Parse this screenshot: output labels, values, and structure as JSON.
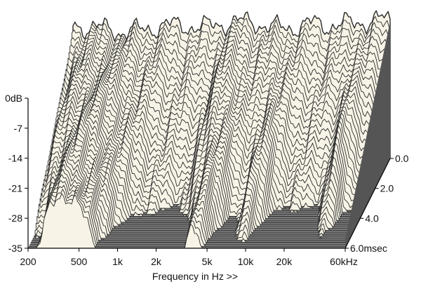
{
  "chart_data": {
    "type": "waterfall-3d",
    "xlabel": "Frequency in Hz >>",
    "x_ticks": [
      "200",
      "500",
      "1k",
      "2k",
      "5k",
      "10k",
      "20k",
      "60kHz"
    ],
    "x_tick_values": [
      200,
      500,
      1000,
      2000,
      5000,
      10000,
      20000,
      60000
    ],
    "x_scale": "log",
    "x_range": [
      200,
      60000
    ],
    "y_ticks": [
      "0dB",
      "-7",
      "-14",
      "-21",
      "-28",
      "-35"
    ],
    "y_tick_values": [
      0,
      -7,
      -14,
      -21,
      -28,
      -35
    ],
    "y_range": [
      -35,
      0
    ],
    "z_ticks": [
      "0.0",
      "2.0",
      "4.0",
      "6.0msec"
    ],
    "z_tick_values": [
      0.0,
      2.0,
      4.0,
      6.0
    ],
    "z_range": [
      0,
      6.0
    ],
    "slice_count": 45,
    "slice_spacing_msec": 0.133,
    "initial_response_db": [
      [
        200,
        -4
      ],
      [
        300,
        -4.5
      ],
      [
        400,
        -5
      ],
      [
        500,
        -5.5
      ],
      [
        700,
        -5
      ],
      [
        1000,
        -4
      ],
      [
        1500,
        -4
      ],
      [
        2000,
        -4.5
      ],
      [
        3000,
        -3.5
      ],
      [
        5000,
        -3
      ],
      [
        7000,
        -4.5
      ],
      [
        10000,
        -4.5
      ],
      [
        15000,
        -3.5
      ],
      [
        20000,
        -4
      ],
      [
        30000,
        -3.5
      ],
      [
        40000,
        -3
      ],
      [
        50000,
        -2.5
      ],
      [
        60000,
        -3
      ]
    ],
    "decay_floor_db": -35,
    "colors": {
      "surface_fill": "#f7f4e7",
      "slice_line": "#2a2a2a",
      "floor_fill": "#7a7a7a",
      "floor_line": "#cfcfcf",
      "side_wall": "#555555",
      "axis": "#000000"
    }
  }
}
